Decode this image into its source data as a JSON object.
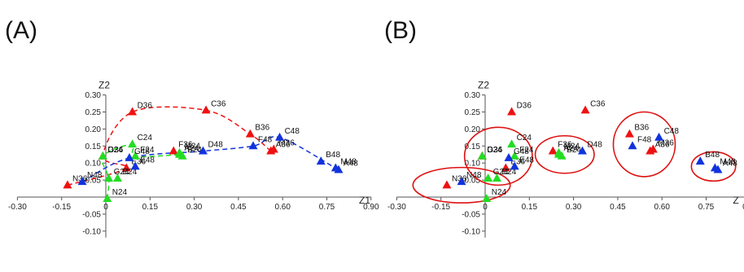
{
  "colors": {
    "red": "#ee1111",
    "green": "#22dd22",
    "blue": "#1133dd",
    "ring": "#dd1111",
    "axis": "#555555"
  },
  "chart_data": [
    {
      "type": "scatter",
      "panel_label": "(A)",
      "xlabel": "Z1",
      "ylabel": "Z2",
      "xlim": [
        -0.3,
        0.9
      ],
      "ylim": [
        -0.1,
        0.3
      ],
      "x_ticks": [
        "-0.30",
        "-0.15",
        "0",
        "0.15",
        "0.30",
        "0.45",
        "0.60",
        "0.75",
        "0.90"
      ],
      "y_ticks": [
        "0.30",
        "0.25",
        "0.20",
        "0.15",
        "0.10",
        "0.05",
        "-0.05",
        "-0.10"
      ],
      "series": [
        {
          "color": "red",
          "points": [
            {
              "label": "N36",
              "x": -0.13,
              "y": 0.035
            },
            {
              "label": "E36",
              "x": 0.07,
              "y": 0.085
            },
            {
              "label": "G36",
              "x": -0.01,
              "y": 0.12
            },
            {
              "label": "D36",
              "x": 0.09,
              "y": 0.25
            },
            {
              "label": "C36",
              "x": 0.34,
              "y": 0.255
            },
            {
              "label": "B36",
              "x": 0.49,
              "y": 0.185
            },
            {
              "label": "A36",
              "x": 0.56,
              "y": 0.135
            },
            {
              "label": "M36",
              "x": 0.57,
              "y": 0.14
            },
            {
              "label": "F36",
              "x": 0.23,
              "y": 0.135
            }
          ]
        },
        {
          "color": "green",
          "points": [
            {
              "label": "N24",
              "x": 0.005,
              "y": -0.005
            },
            {
              "label": "G24",
              "x": 0.01,
              "y": 0.055
            },
            {
              "label": "E24",
              "x": 0.04,
              "y": 0.055
            },
            {
              "label": "D24",
              "x": -0.01,
              "y": 0.12
            },
            {
              "label": "C24",
              "x": 0.09,
              "y": 0.155
            },
            {
              "label": "F24",
              "x": 0.1,
              "y": 0.12
            },
            {
              "label": "M24",
              "x": 0.25,
              "y": 0.13
            },
            {
              "label": "A24",
              "x": 0.25,
              "y": 0.125
            },
            {
              "label": "B24",
              "x": 0.26,
              "y": 0.12
            }
          ]
        },
        {
          "color": "blue",
          "points": [
            {
              "label": "N48",
              "x": -0.08,
              "y": 0.045
            },
            {
              "label": "G48",
              "x": 0.08,
              "y": 0.115
            },
            {
              "label": "E48",
              "x": 0.1,
              "y": 0.09
            },
            {
              "label": "D48",
              "x": 0.33,
              "y": 0.135
            },
            {
              "label": "F48",
              "x": 0.5,
              "y": 0.15
            },
            {
              "label": "C48",
              "x": 0.59,
              "y": 0.175
            },
            {
              "label": "B48",
              "x": 0.73,
              "y": 0.105
            },
            {
              "label": "M48",
              "x": 0.78,
              "y": 0.085
            },
            {
              "label": "A48",
              "x": 0.79,
              "y": 0.08
            }
          ]
        }
      ],
      "trajectories": [
        {
          "color": "red",
          "path": [
            "N36",
            "E36",
            "G36",
            "D36",
            "C36",
            "B36",
            "A36"
          ]
        },
        {
          "color": "green",
          "path": [
            "N24",
            "G24",
            "D24",
            "C24",
            "F24",
            "A24"
          ]
        },
        {
          "color": "blue",
          "path": [
            "N48",
            "G48",
            "D48",
            "F48",
            "C48",
            "M48"
          ]
        }
      ],
      "groups": []
    },
    {
      "type": "scatter",
      "panel_label": "(B)",
      "xlabel": "Z",
      "ylabel": "Z2",
      "xlim": [
        -0.3,
        0.9
      ],
      "ylim": [
        -0.1,
        0.3
      ],
      "x_ticks": [
        "-0.30",
        "-0.15",
        "0",
        "0.15",
        "0.30",
        "0.45",
        "0.60",
        "0.75",
        "0.90"
      ],
      "y_ticks": [
        "0.30",
        "0.25",
        "0.20",
        "0.15",
        "0.10",
        "0.05",
        "-0.05",
        "-0.10"
      ],
      "series": [
        {
          "color": "red",
          "points": [
            {
              "label": "N36",
              "x": -0.13,
              "y": 0.035
            },
            {
              "label": "E36",
              "x": 0.07,
              "y": 0.085
            },
            {
              "label": "G36",
              "x": -0.01,
              "y": 0.12
            },
            {
              "label": "D36",
              "x": 0.09,
              "y": 0.25
            },
            {
              "label": "C36",
              "x": 0.34,
              "y": 0.255
            },
            {
              "label": "B36",
              "x": 0.49,
              "y": 0.185
            },
            {
              "label": "A36",
              "x": 0.56,
              "y": 0.135
            },
            {
              "label": "M36",
              "x": 0.57,
              "y": 0.14
            },
            {
              "label": "F36",
              "x": 0.23,
              "y": 0.135
            }
          ]
        },
        {
          "color": "green",
          "points": [
            {
              "label": "N24",
              "x": 0.005,
              "y": -0.005
            },
            {
              "label": "G24",
              "x": 0.01,
              "y": 0.055
            },
            {
              "label": "E24",
              "x": 0.04,
              "y": 0.055
            },
            {
              "label": "D24",
              "x": -0.01,
              "y": 0.12
            },
            {
              "label": "C24",
              "x": 0.09,
              "y": 0.155
            },
            {
              "label": "F24",
              "x": 0.1,
              "y": 0.12
            },
            {
              "label": "M24",
              "x": 0.25,
              "y": 0.13
            },
            {
              "label": "A24",
              "x": 0.25,
              "y": 0.125
            },
            {
              "label": "B24",
              "x": 0.26,
              "y": 0.12
            }
          ]
        },
        {
          "color": "blue",
          "points": [
            {
              "label": "N48",
              "x": -0.08,
              "y": 0.045
            },
            {
              "label": "G48",
              "x": 0.08,
              "y": 0.115
            },
            {
              "label": "E48",
              "x": 0.1,
              "y": 0.09
            },
            {
              "label": "D48",
              "x": 0.33,
              "y": 0.135
            },
            {
              "label": "F48",
              "x": 0.5,
              "y": 0.15
            },
            {
              "label": "C48",
              "x": 0.59,
              "y": 0.175
            },
            {
              "label": "B48",
              "x": 0.73,
              "y": 0.105
            },
            {
              "label": "M48",
              "x": 0.78,
              "y": 0.085
            },
            {
              "label": "A48",
              "x": 0.79,
              "y": 0.08
            }
          ]
        }
      ],
      "trajectories": [],
      "groups": [
        {
          "members": [
            "N36",
            "N48",
            "G24",
            "E24",
            "N24"
          ],
          "cx": -0.08,
          "cy": 0.035,
          "rx": 0.165,
          "ry": 0.052
        },
        {
          "members": [
            "D24",
            "G36",
            "G48",
            "C24",
            "F24",
            "E48",
            "E36"
          ],
          "cx": 0.045,
          "cy": 0.12,
          "rx": 0.115,
          "ry": 0.085
        },
        {
          "members": [
            "F36",
            "M24",
            "D48",
            "A24",
            "B24"
          ],
          "cx": 0.27,
          "cy": 0.125,
          "rx": 0.1,
          "ry": 0.055
        },
        {
          "members": [
            "B36",
            "C48",
            "F48",
            "M36",
            "A36"
          ],
          "cx": 0.54,
          "cy": 0.155,
          "rx": 0.105,
          "ry": 0.095
        },
        {
          "members": [
            "B48",
            "M48",
            "A48"
          ],
          "cx": 0.775,
          "cy": 0.09,
          "rx": 0.075,
          "ry": 0.043
        }
      ]
    }
  ]
}
